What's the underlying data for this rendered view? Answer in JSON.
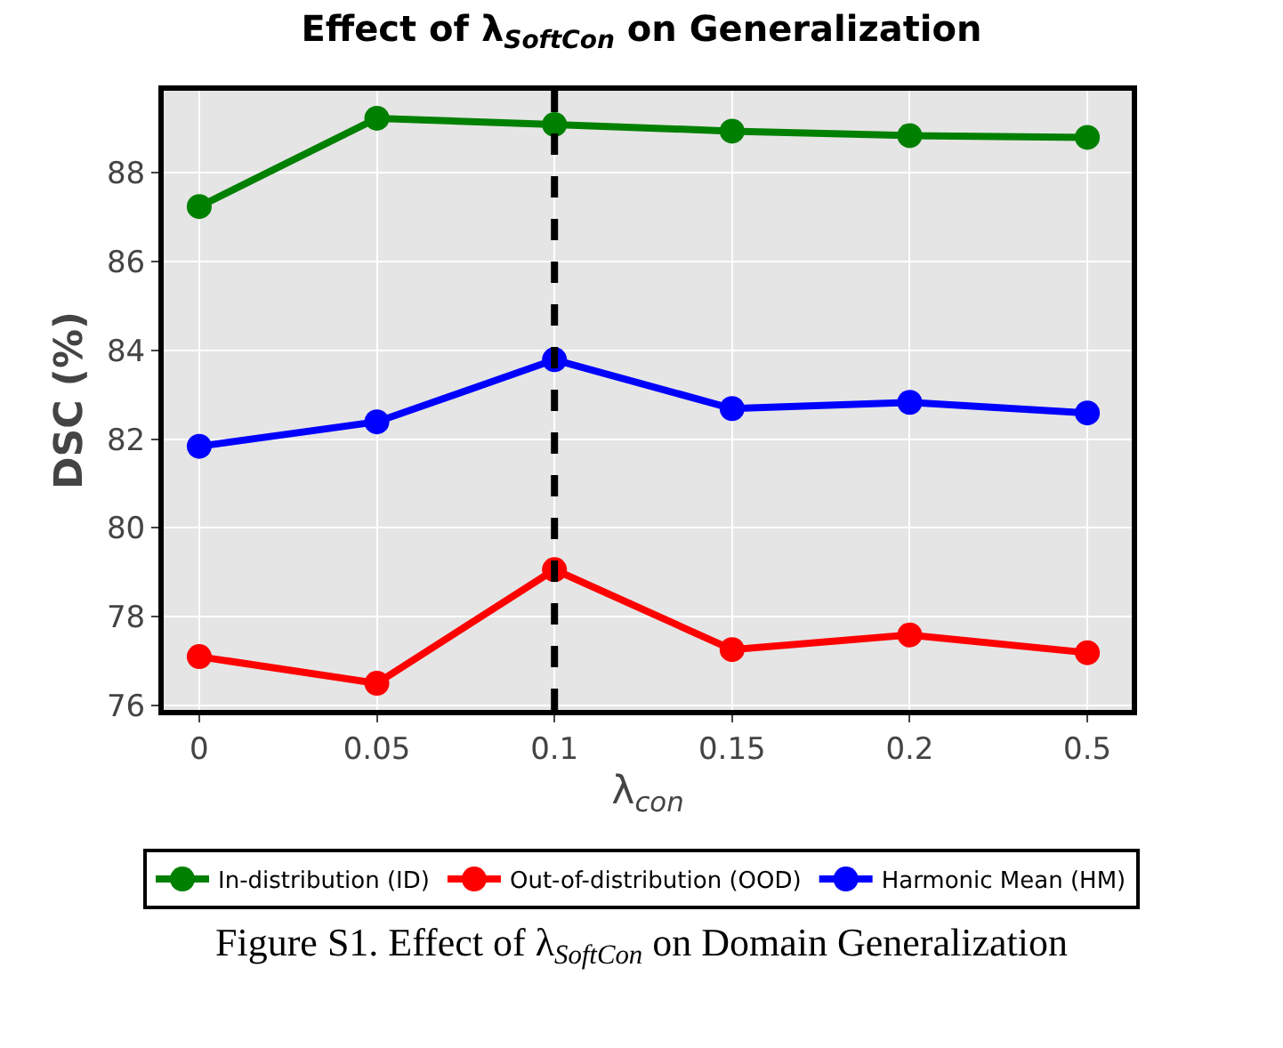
{
  "chart_data": {
    "type": "line",
    "title": "Effect of λ$_{SoftCon}$ on Generalization",
    "xlabel": "λ$_{con}$",
    "ylabel": "DSC (%)",
    "categories": [
      "0",
      "0.05",
      "0.1",
      "0.15",
      "0.2",
      "0.5"
    ],
    "series": [
      {
        "name": "In-distribution (ID)",
        "color": "#008000",
        "values": [
          87.24,
          89.23,
          89.09,
          88.94,
          88.84,
          88.8
        ]
      },
      {
        "name": "Out-of-distribution (OOD)",
        "color": "#ff0000",
        "values": [
          77.1,
          76.5,
          79.06,
          77.26,
          77.59,
          77.19
        ]
      },
      {
        "name": "Harmonic Mean (HM)",
        "color": "#0000ff",
        "values": [
          81.84,
          82.39,
          83.79,
          82.69,
          82.83,
          82.59
        ]
      }
    ],
    "ylim": [
      75.9,
      89.85
    ],
    "yticks": [
      76,
      78,
      80,
      82,
      84,
      86,
      88
    ],
    "ref_lines": [
      {
        "axis": "x",
        "value": "0.1",
        "color": "#000000",
        "line_style": "dashed"
      }
    ],
    "annotations": [
      "Figure S1. Effect of λ$_{SoftCon}$ on Domain Generalization"
    ],
    "grid": true,
    "legend": "bottom",
    "marker": "circle",
    "line_style": "solid"
  }
}
